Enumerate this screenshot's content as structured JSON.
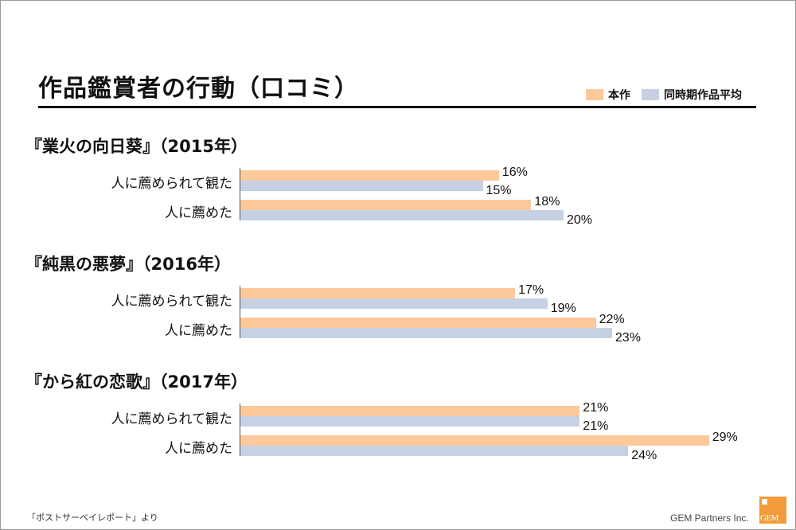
{
  "title": "作品鑑賞者の行動（口コミ）",
  "legend": [
    {
      "label": "本作",
      "color": "#fdc89a"
    },
    {
      "label": "同時期作品平均",
      "color": "#c6d1e4"
    }
  ],
  "footer": {
    "source": "「ポストサーベイレポート」より",
    "company": "GEM Partners Inc.",
    "logo_text": "GEM"
  },
  "chart_data": {
    "type": "bar",
    "orientation": "horizontal",
    "unit": "%",
    "xlim": [
      0,
      30
    ],
    "series_names": [
      "本作",
      "同時期作品平均"
    ],
    "groups": [
      {
        "title": "『業火の向日葵』（2015年）",
        "categories": [
          "人に薦められて観た",
          "人に薦めた"
        ],
        "series": [
          {
            "values": [
              16,
              18
            ]
          },
          {
            "values": [
              15,
              20
            ]
          }
        ]
      },
      {
        "title": "『純黒の悪夢』（2016年）",
        "categories": [
          "人に薦められて観た",
          "人に薦めた"
        ],
        "series": [
          {
            "values": [
              17,
              22
            ]
          },
          {
            "values": [
              19,
              23
            ]
          }
        ]
      },
      {
        "title": "『から紅の恋歌』（2017年）",
        "categories": [
          "人に薦められて観た",
          "人に薦めた"
        ],
        "series": [
          {
            "values": [
              21,
              29
            ]
          },
          {
            "values": [
              21,
              24
            ]
          }
        ]
      }
    ]
  }
}
